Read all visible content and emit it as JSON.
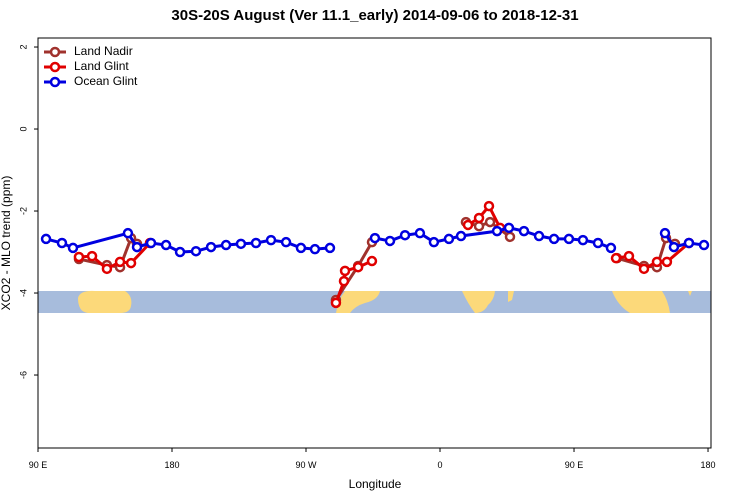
{
  "chart_data": {
    "type": "line",
    "title": "30S-20S August (Ver 11.1_early)   2014-09-06 to 2018-12-31",
    "x_label": "Longitude",
    "y_label": "XCO2 - MLO trend (ppm)",
    "xlim": [
      90,
      542
    ],
    "ylim": [
      -7.78,
      2.22
    ],
    "xticks": [
      {
        "value": 90,
        "label": "90 E"
      },
      180,
      {
        "value": 270,
        "label": "90 W"
      },
      {
        "value": 360,
        "label": "0"
      },
      {
        "value": 450,
        "label": "90 E"
      },
      {
        "value": 540,
        "label": "180"
      }
    ],
    "yticks": [
      2,
      0,
      -2,
      -4,
      -6
    ],
    "legend": "top-left",
    "series": [
      {
        "name": "Land Nadir",
        "color": "#a0322d",
        "x": [
          117.5,
          136.3,
          145.1,
          152.5,
          156.5,
          null,
          290.1,
          305,
          314.3,
          null,
          377.4,
          386.2,
          393.6,
          407,
          null,
          478.9,
          497,
          505.7,
          511.8,
          517.8
        ],
        "values": [
          -3.17,
          -3.32,
          -3.37,
          -2.66,
          -2.8,
          null,
          -4.17,
          -3.34,
          -2.76,
          null,
          -2.27,
          -2.37,
          -2.27,
          -2.63,
          null,
          -3.15,
          -3.34,
          -3.37,
          -2.66,
          -2.8
        ]
      },
      {
        "name": "Land Glint",
        "color": "#e00000",
        "x": [
          117.5,
          126.3,
          136.3,
          145.1,
          152.5,
          165.2,
          null,
          290.1,
          295.5,
          296.2,
          305,
          314.3,
          null,
          378.8,
          386.2,
          392.9,
          400.3,
          null,
          478.2,
          486.9,
          497,
          505.7,
          512.4,
          527.2
        ],
        "values": [
          -3.12,
          -3.1,
          -3.41,
          -3.24,
          -3.27,
          -2.78,
          null,
          -4.24,
          -3.71,
          -3.46,
          -3.37,
          -3.22,
          null,
          -2.34,
          -2.17,
          -1.88,
          -2.41,
          null,
          -3.15,
          -3.1,
          -3.41,
          -3.24,
          -3.24,
          -2.78
        ]
      },
      {
        "name": "Ocean Glint",
        "color": "#0000e0",
        "x": [
          95.4,
          106.1,
          113.5,
          150.4,
          156.5,
          165.9,
          176,
          185.4,
          196.1,
          206.2,
          216.3,
          226.3,
          236.4,
          246.5,
          256.6,
          266.6,
          276,
          286.1,
          null,
          316.3,
          326.4,
          336.5,
          346.5,
          355.9,
          366,
          374.1,
          398.3,
          406.3,
          416.4,
          426.5,
          436.6,
          446.6,
          456,
          466.1,
          474.8,
          null,
          511.1,
          517.1,
          527.2,
          537.3
        ],
        "values": [
          -2.68,
          -2.78,
          -2.9,
          -2.54,
          -2.88,
          -2.78,
          -2.83,
          -3.0,
          -2.98,
          -2.88,
          -2.83,
          -2.8,
          -2.78,
          -2.71,
          -2.76,
          -2.9,
          -2.93,
          -2.9,
          null,
          -2.66,
          -2.73,
          -2.59,
          -2.54,
          -2.76,
          -2.68,
          -2.61,
          -2.49,
          -2.41,
          -2.49,
          -2.61,
          -2.68,
          -2.68,
          -2.71,
          -2.78,
          -2.9,
          null,
          -2.54,
          -2.88,
          -2.78,
          -2.83
        ]
      }
    ]
  }
}
